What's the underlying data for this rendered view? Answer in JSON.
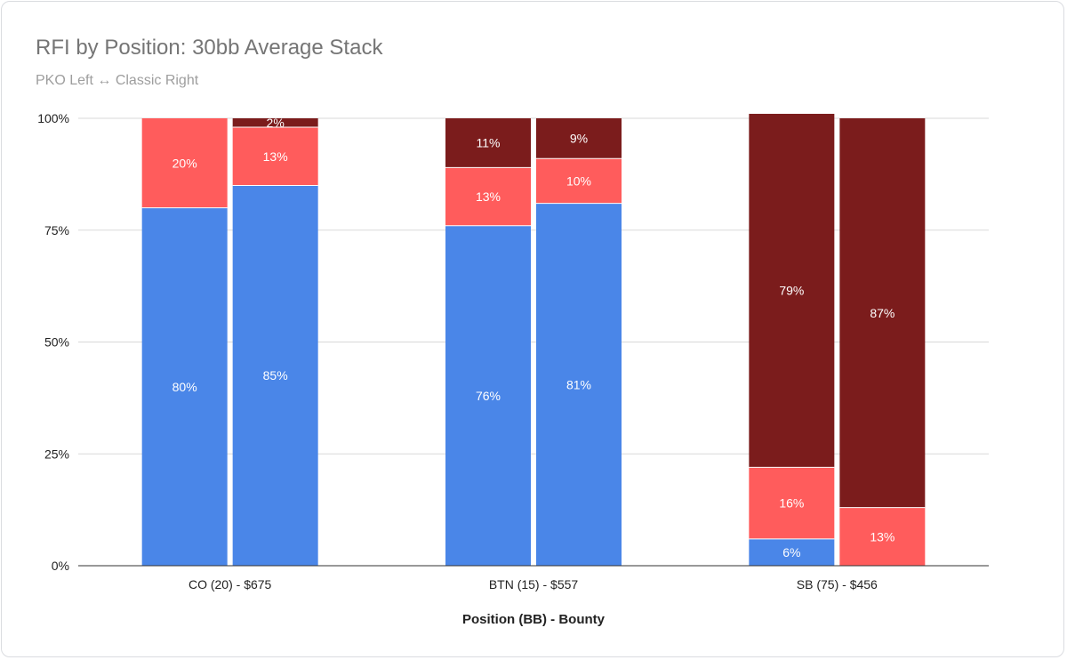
{
  "title": "RFI by Position: 30bb Average Stack",
  "subtitle": "PKO Left ↔ Classic Right",
  "chart_data": {
    "type": "bar",
    "stacked": true,
    "title": "RFI by Position: 30bb Average Stack",
    "subtitle": "PKO Left ↔ Classic Right",
    "xlabel": "Position (BB) - Bounty",
    "ylabel": "",
    "ylim": [
      0,
      100
    ],
    "yticks": [
      "0%",
      "25%",
      "50%",
      "75%",
      "100%"
    ],
    "grid": true,
    "legend": "none",
    "categories": [
      "CO (20) - $675",
      "BTN (15) - $557",
      "SB (75) - $456"
    ],
    "bars": [
      {
        "category": 0,
        "segments": [
          80,
          20,
          0
        ],
        "labels": [
          "80%",
          "20%",
          ""
        ]
      },
      {
        "category": 0,
        "segments": [
          85,
          13,
          2
        ],
        "labels": [
          "85%",
          "13%",
          "2%"
        ]
      },
      {
        "category": 1,
        "segments": [
          76,
          13,
          11
        ],
        "labels": [
          "76%",
          "13%",
          "11%"
        ]
      },
      {
        "category": 1,
        "segments": [
          81,
          10,
          9
        ],
        "labels": [
          "81%",
          "10%",
          "9%"
        ]
      },
      {
        "category": 2,
        "segments": [
          6,
          16,
          79
        ],
        "labels": [
          "6%",
          "16%",
          "79%"
        ]
      },
      {
        "category": 2,
        "segments": [
          0,
          13,
          87
        ],
        "labels": [
          "",
          "13%",
          "87%"
        ]
      }
    ],
    "segment_colors": [
      "#4a86e8",
      "#ff5c5c",
      "#7b1c1c"
    ]
  }
}
